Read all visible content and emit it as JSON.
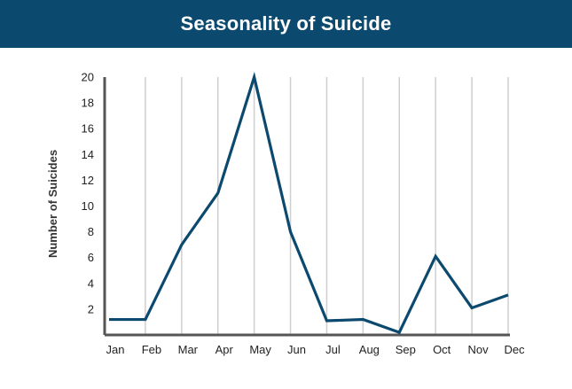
{
  "chart_data": {
    "type": "line",
    "title": "Seasonality of Suicide",
    "xlabel": "",
    "ylabel": "Number of Suicides",
    "categories": [
      "Jan",
      "Feb",
      "Mar",
      "Apr",
      "May",
      "Jun",
      "Jul",
      "Aug",
      "Sep",
      "Oct",
      "Nov",
      "Dec"
    ],
    "series": [
      {
        "values": [
          1.2,
          1.2,
          7,
          11,
          20,
          8,
          1.1,
          1.2,
          0.2,
          6.1,
          2.1,
          3.1
        ]
      }
    ],
    "yticks": [
      2,
      4,
      6,
      8,
      10,
      12,
      14,
      16,
      18,
      20
    ],
    "ylim": [
      0,
      20
    ],
    "grid": "vertical",
    "legend": "none",
    "colors": {
      "line": "#0b4a6e",
      "title_bar": "#0b4a6e",
      "grid": "#cfcfcf",
      "axis": "#555555"
    }
  }
}
